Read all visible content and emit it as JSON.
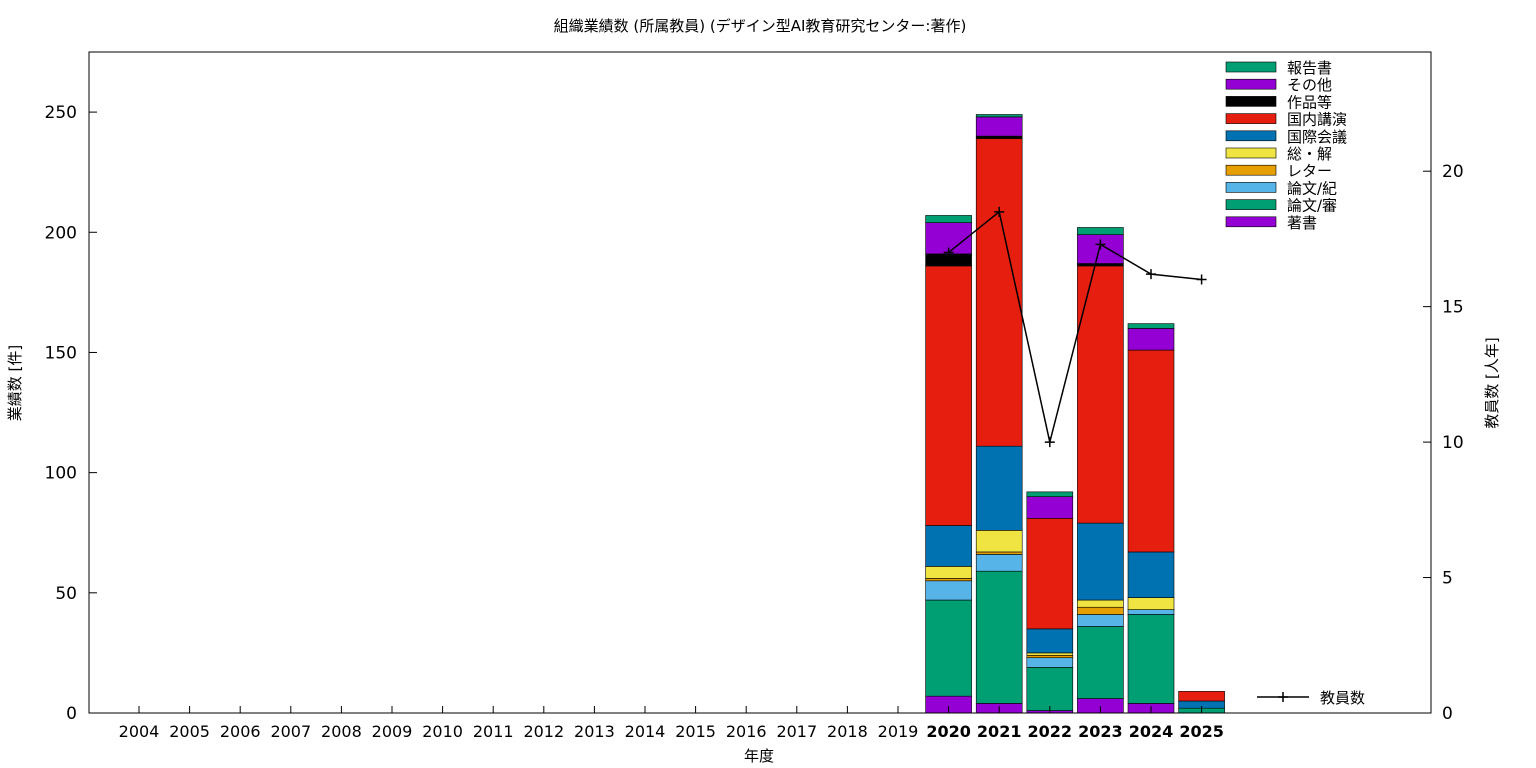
{
  "chart_data": {
    "type": "bar",
    "stacked": true,
    "title": "組織業績数 (所属教員) (デザイン型AI教育研究センター:著作)",
    "xlabel": "年度",
    "ylabel": "業績数 [件]",
    "y2label": "教員数 [人年]",
    "ylim": [
      0,
      275
    ],
    "y2lim": [
      0,
      24.4
    ],
    "yticks": [
      "0",
      "50",
      "100",
      "150",
      "200",
      "250"
    ],
    "y2ticks": [
      "0",
      "5",
      "10",
      "15",
      "20"
    ],
    "grid": false,
    "legend_position": "top-right",
    "categories": [
      "2004",
      "2005",
      "2006",
      "2007",
      "2008",
      "2009",
      "2010",
      "2011",
      "2012",
      "2013",
      "2014",
      "2015",
      "2016",
      "2017",
      "2018",
      "2019",
      "2020",
      "2021",
      "2022",
      "2023",
      "2024",
      "2025"
    ],
    "bold_categories": [
      "2020",
      "2021",
      "2022",
      "2023",
      "2024",
      "2025"
    ],
    "series": [
      {
        "name": "著書",
        "color": "#9400d3",
        "values": [
          0,
          0,
          0,
          0,
          0,
          0,
          0,
          0,
          0,
          0,
          0,
          0,
          0,
          0,
          0,
          0,
          7,
          4,
          1,
          6,
          4,
          0
        ]
      },
      {
        "name": "論文/審",
        "color": "#009e73",
        "values": [
          0,
          0,
          0,
          0,
          0,
          0,
          0,
          0,
          0,
          0,
          0,
          0,
          0,
          0,
          0,
          0,
          40,
          55,
          18,
          30,
          37,
          2
        ]
      },
      {
        "name": "論文/紀",
        "color": "#56b4e9",
        "values": [
          0,
          0,
          0,
          0,
          0,
          0,
          0,
          0,
          0,
          0,
          0,
          0,
          0,
          0,
          0,
          0,
          8,
          7,
          4,
          5,
          2,
          0
        ]
      },
      {
        "name": "レター",
        "color": "#e69f00",
        "values": [
          0,
          0,
          0,
          0,
          0,
          0,
          0,
          0,
          0,
          0,
          0,
          0,
          0,
          0,
          0,
          0,
          1,
          1,
          1,
          3,
          0,
          0
        ]
      },
      {
        "name": "総・解",
        "color": "#f0e442",
        "values": [
          0,
          0,
          0,
          0,
          0,
          0,
          0,
          0,
          0,
          0,
          0,
          0,
          0,
          0,
          0,
          0,
          5,
          9,
          1,
          3,
          5,
          0
        ]
      },
      {
        "name": "国際会議",
        "color": "#0072b2",
        "values": [
          0,
          0,
          0,
          0,
          0,
          0,
          0,
          0,
          0,
          0,
          0,
          0,
          0,
          0,
          0,
          0,
          17,
          35,
          10,
          32,
          19,
          3
        ]
      },
      {
        "name": "国内講演",
        "color": "#e51e10",
        "values": [
          0,
          0,
          0,
          0,
          0,
          0,
          0,
          0,
          0,
          0,
          0,
          0,
          0,
          0,
          0,
          0,
          108,
          128,
          46,
          107,
          84,
          4
        ]
      },
      {
        "name": "作品等",
        "color": "#000000",
        "values": [
          0,
          0,
          0,
          0,
          0,
          0,
          0,
          0,
          0,
          0,
          0,
          0,
          0,
          0,
          0,
          0,
          5,
          1,
          0,
          1,
          0,
          0
        ]
      },
      {
        "name": "その他",
        "color": "#9400d3",
        "values": [
          0,
          0,
          0,
          0,
          0,
          0,
          0,
          0,
          0,
          0,
          0,
          0,
          0,
          0,
          0,
          0,
          13,
          8,
          9,
          12,
          9,
          0
        ]
      },
      {
        "name": "報告書",
        "color": "#009e73",
        "values": [
          0,
          0,
          0,
          0,
          0,
          0,
          0,
          0,
          0,
          0,
          0,
          0,
          0,
          0,
          0,
          0,
          3,
          1,
          2,
          3,
          2,
          0
        ]
      }
    ],
    "line_series": {
      "name": "教員数",
      "axis": "y2",
      "x": [
        "2020",
        "2021",
        "2022",
        "2023",
        "2024",
        "2025"
      ],
      "values": [
        17.0,
        18.5,
        10.0,
        17.3,
        16.2,
        16.0
      ]
    }
  }
}
